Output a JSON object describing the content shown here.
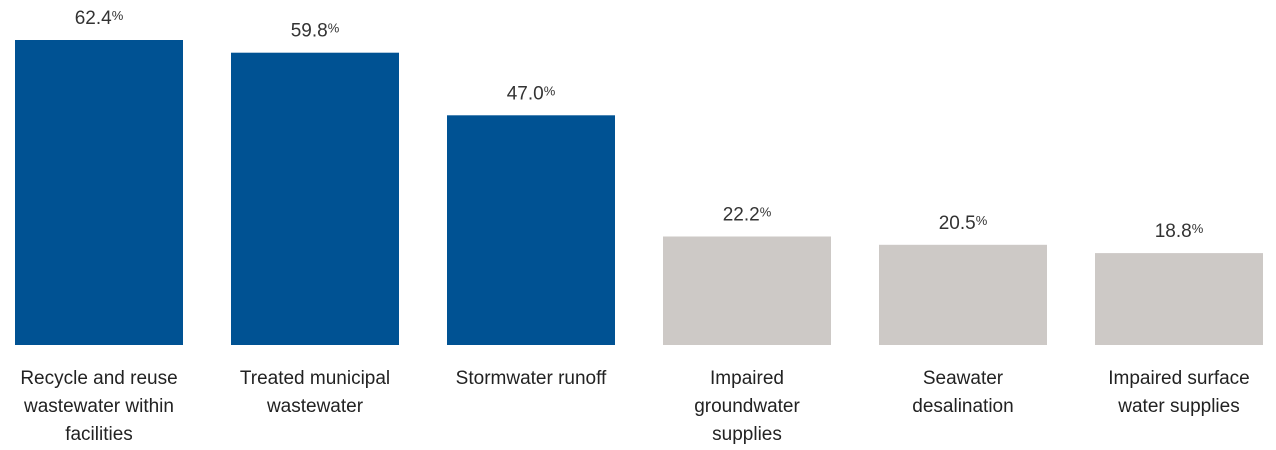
{
  "chart_data": {
    "type": "bar",
    "categories": [
      [
        "Recycle and reuse",
        "wastewater within",
        "facilities"
      ],
      [
        "Treated municipal",
        "wastewater"
      ],
      [
        "Stormwater runoff"
      ],
      [
        "Impaired",
        "groundwater",
        "supplies"
      ],
      [
        "Seawater",
        "desalination"
      ],
      [
        "Impaired surface",
        "water supplies"
      ]
    ],
    "values": [
      62.4,
      59.8,
      47.0,
      22.2,
      20.5,
      18.8
    ],
    "value_labels": [
      "62.4",
      "59.8",
      "47.0",
      "22.2",
      "20.5",
      "18.8"
    ],
    "unit_suffix": "%",
    "highlight": [
      true,
      true,
      true,
      false,
      false,
      false
    ],
    "colors": {
      "highlight": "#005293",
      "muted": "#cdc9c6"
    },
    "ylim": [
      0,
      62.4
    ],
    "grid": false,
    "legend": "none"
  }
}
